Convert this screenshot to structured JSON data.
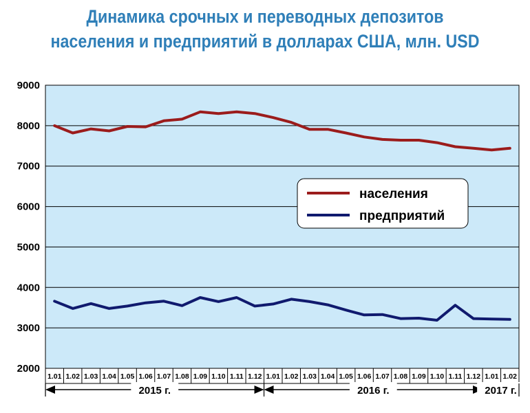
{
  "chart_data": {
    "type": "line",
    "title_line1": "Динамика срочных и переводных депозитов",
    "title_line2": "населения и предприятий в долларах США, млн. USD",
    "x": [
      "1.01",
      "1.02",
      "1.03",
      "1.04",
      "1.05",
      "1.06",
      "1.07",
      "1.08",
      "1.09",
      "1.10",
      "1.11",
      "1.12",
      "1.01",
      "1.02",
      "1.03",
      "1.04",
      "1.05",
      "1.06",
      "1.07",
      "1.08",
      "1.09",
      "1.10",
      "1.11",
      "1.12",
      "1.01",
      "1.02"
    ],
    "years": [
      {
        "label": "2015 г.",
        "start": 0,
        "end": 12
      },
      {
        "label": "2016 г.",
        "start": 12,
        "end": 24
      },
      {
        "label": "2017 г.",
        "start": 24,
        "end": 26
      }
    ],
    "ylim": [
      2000,
      9000
    ],
    "yticks": [
      "2000",
      "3000",
      "4000",
      "5000",
      "6000",
      "7000",
      "8000",
      "9000"
    ],
    "grid": true,
    "legend_position": "right-middle",
    "series": [
      {
        "name": "населения",
        "color": "#9b1c1c",
        "values": [
          8000,
          7820,
          7920,
          7870,
          7980,
          7970,
          8120,
          8160,
          8340,
          8300,
          8340,
          8300,
          8200,
          8080,
          7910,
          7910,
          7820,
          7720,
          7660,
          7640,
          7640,
          7580,
          7480,
          7440,
          7400,
          7440
        ]
      },
      {
        "name": "предприятий",
        "color": "#101a6e",
        "values": [
          3660,
          3480,
          3600,
          3480,
          3540,
          3620,
          3660,
          3550,
          3750,
          3650,
          3750,
          3540,
          3590,
          3710,
          3650,
          3570,
          3440,
          3320,
          3330,
          3230,
          3240,
          3190,
          3560,
          3230,
          3220,
          3210
        ]
      }
    ]
  }
}
